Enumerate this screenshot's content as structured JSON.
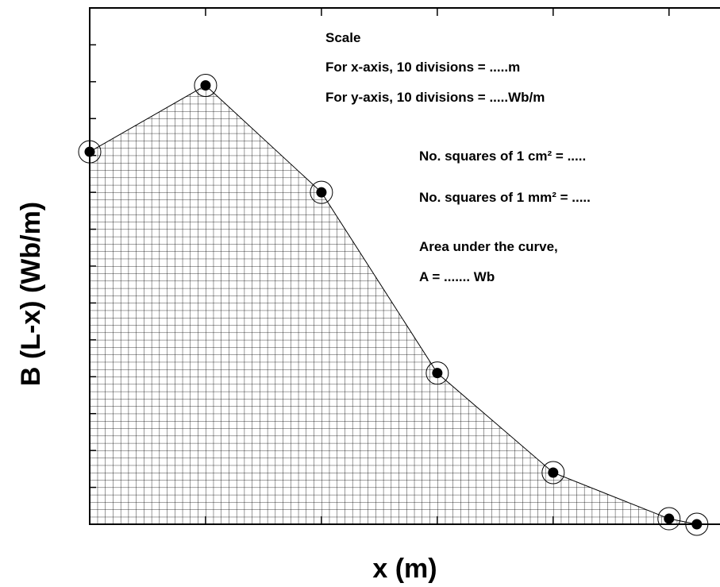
{
  "chart_data": {
    "type": "line",
    "xlabel": "x (m)",
    "ylabel": "B (L-x) (Wb/m)",
    "x": [
      0,
      1,
      2,
      3,
      4,
      5,
      5.24
    ],
    "values": [
      10.1,
      11.9,
      9.0,
      4.1,
      1.4,
      0.15,
      0
    ],
    "color": "#000000",
    "xlim": [
      0,
      5.44
    ],
    "ylim": [
      0,
      14
    ],
    "xticks": [
      0,
      1,
      2,
      3,
      4,
      5
    ],
    "yticks": [
      0,
      1,
      2,
      3,
      4,
      5,
      6,
      7,
      8,
      9,
      10,
      11,
      12,
      13
    ],
    "annotations": [
      "Scale",
      "For x-axis, 10 divisions = .....m",
      "For y-axis, 10 divisions = .....Wb/m",
      "No. squares of 1 cm² = .....",
      "No. squares of 1 mm² = .....",
      "Area under the curve,",
      "A = ....... Wb"
    ]
  }
}
